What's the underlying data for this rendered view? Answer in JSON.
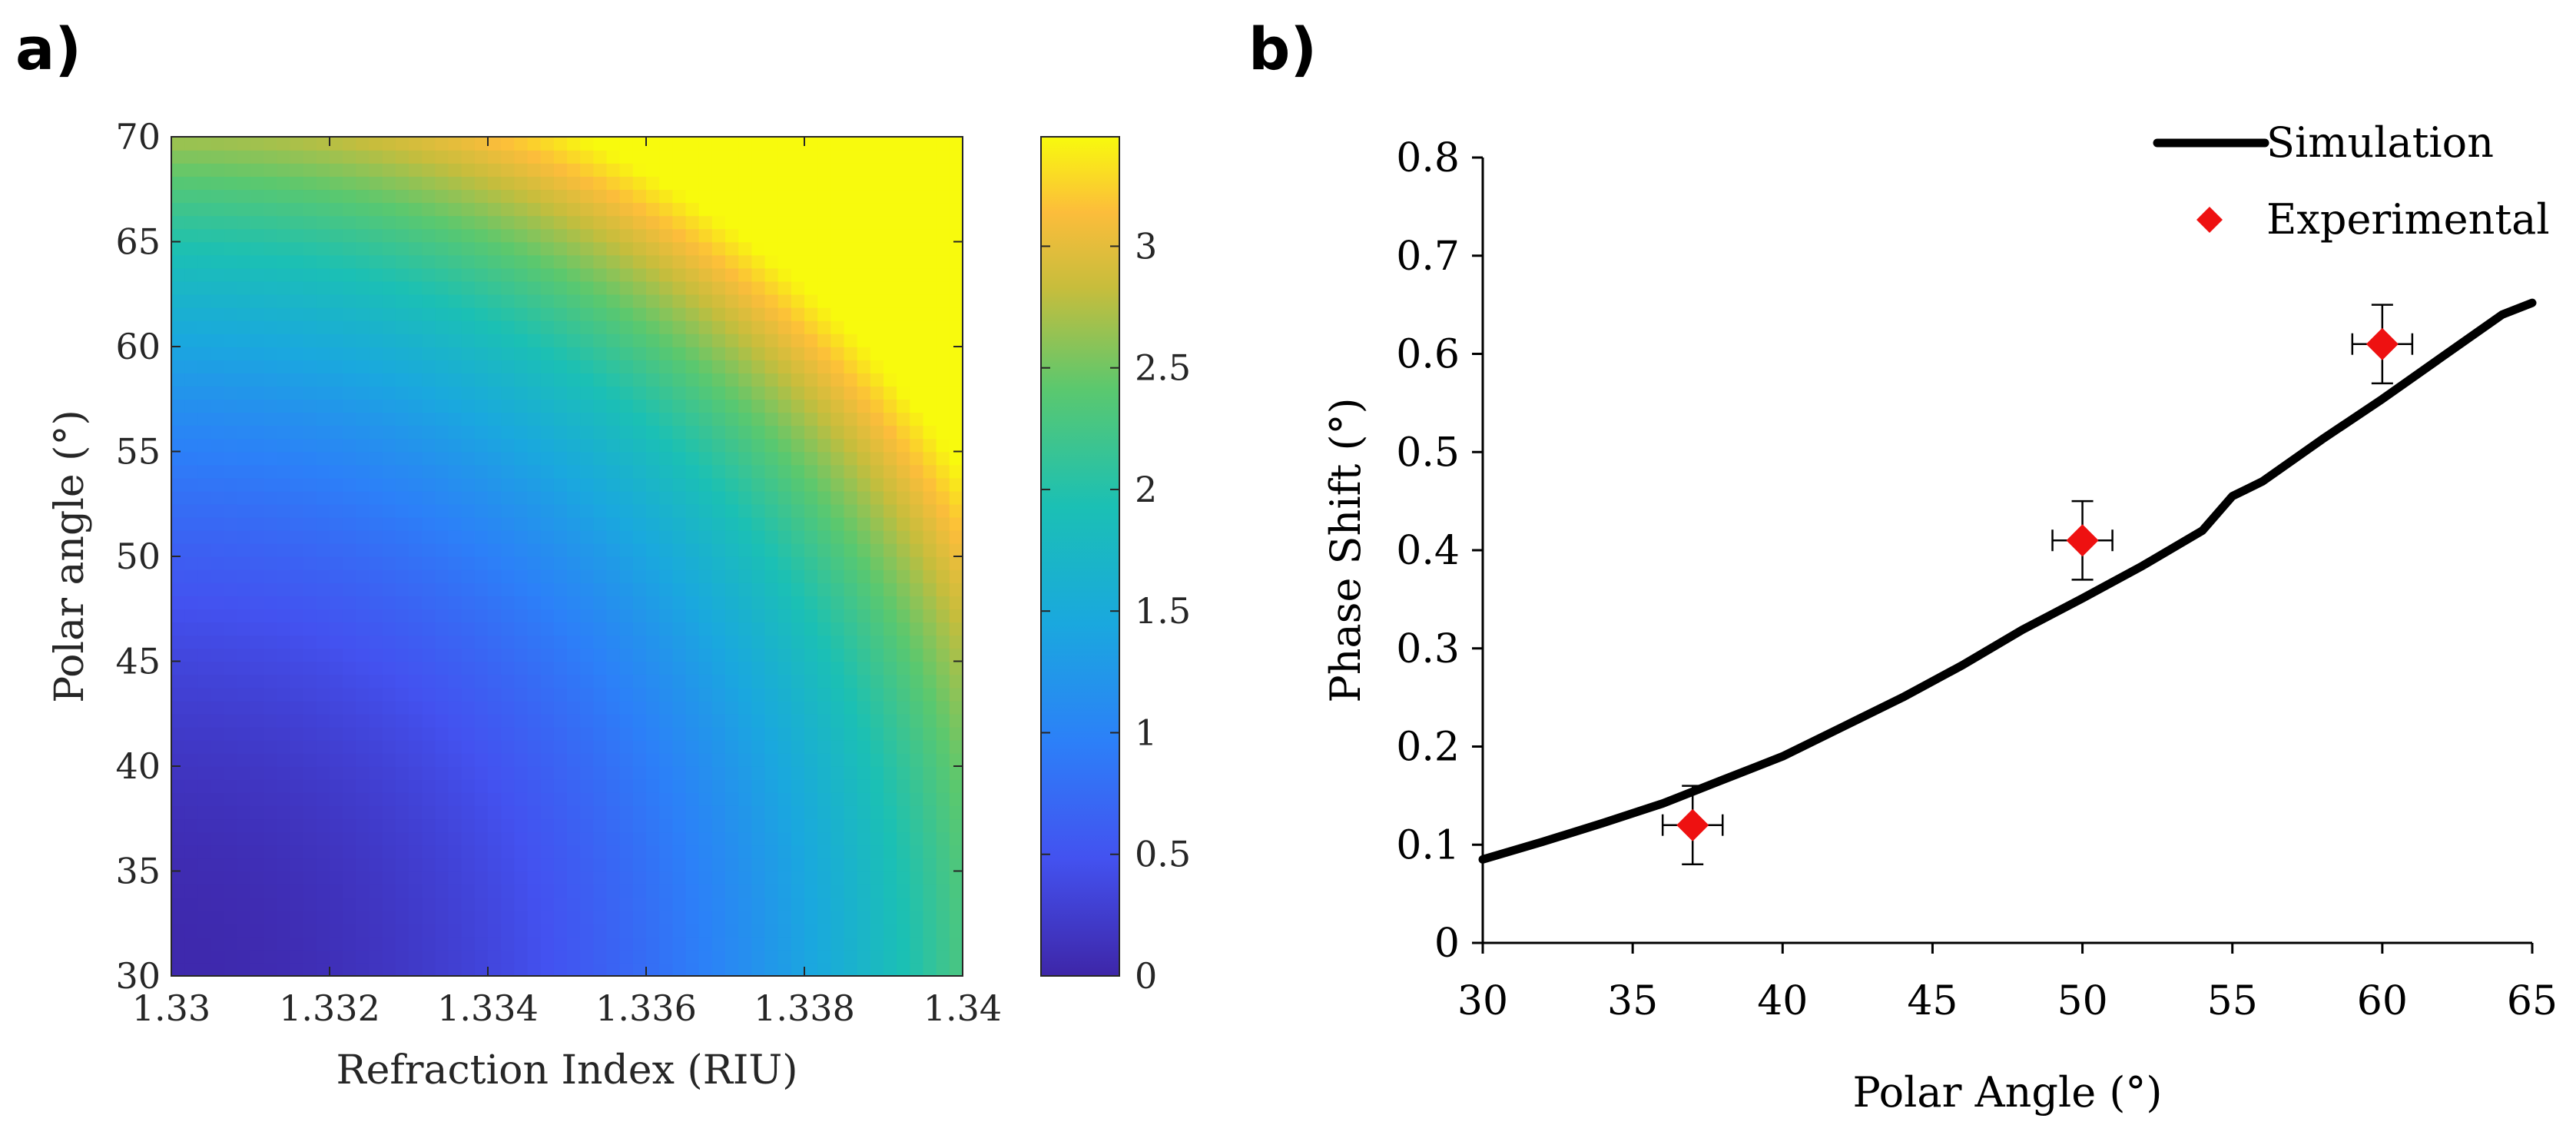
{
  "chart_data": [
    {
      "type": "heatmap",
      "panel_label": "a)",
      "xlabel": "Refraction Index (RIU)",
      "ylabel": "Polar angle (°)",
      "xlim": [
        1.33,
        1.34
      ],
      "ylim": [
        30,
        70
      ],
      "x_ticks": [
        "1.33",
        "1.332",
        "1.334",
        "1.336",
        "1.338",
        "1.34"
      ],
      "y_ticks": [
        "30",
        "35",
        "40",
        "45",
        "50",
        "55",
        "60",
        "65",
        "70"
      ],
      "colorbar": {
        "range": [
          0,
          3.45
        ],
        "ticks": [
          "0",
          "0.5",
          "1",
          "1.5",
          "2",
          "2.5",
          "3"
        ],
        "colormap": "parula"
      },
      "value_samples": {
        "x": [
          1.33,
          1.332,
          1.334,
          1.336,
          1.338,
          1.34
        ],
        "y": [
          30,
          40,
          50,
          60,
          70
        ],
        "note_min": 0.0,
        "max_at_corner": 3.4
      }
    },
    {
      "type": "line",
      "panel_label": "b)",
      "xlabel": "Polar Angle (°)",
      "ylabel": "Phase Shift (°)",
      "xlim": [
        30,
        65
      ],
      "ylim": [
        0,
        0.8
      ],
      "x_ticks": [
        "30",
        "35",
        "40",
        "45",
        "50",
        "55",
        "60",
        "65"
      ],
      "y_ticks": [
        "0",
        "0.1",
        "0.2",
        "0.3",
        "0.4",
        "0.5",
        "0.6",
        "0.7",
        "0.8"
      ],
      "legend": {
        "placement": "top-right",
        "entries": [
          "Simulation",
          "Experimental"
        ]
      },
      "series": [
        {
          "name": "Simulation",
          "style": "line",
          "color": "#000000",
          "x": [
            30,
            32,
            34,
            36,
            38,
            40,
            42,
            44,
            46,
            48,
            50,
            52,
            54,
            55,
            56,
            58,
            60,
            62,
            64,
            65
          ],
          "y": [
            0.085,
            0.103,
            0.122,
            0.142,
            0.166,
            0.19,
            0.22,
            0.25,
            0.283,
            0.319,
            0.351,
            0.384,
            0.42,
            0.455,
            0.47,
            0.513,
            0.554,
            0.597,
            0.64,
            0.652
          ]
        },
        {
          "name": "Experimental",
          "style": "scatter",
          "marker": "diamond",
          "color": "#ee1111",
          "x": [
            37,
            50,
            60
          ],
          "y": [
            0.12,
            0.41,
            0.61
          ],
          "y_err": [
            0.04,
            0.04,
            0.04
          ],
          "x_err": [
            1,
            1,
            1
          ]
        }
      ]
    }
  ]
}
